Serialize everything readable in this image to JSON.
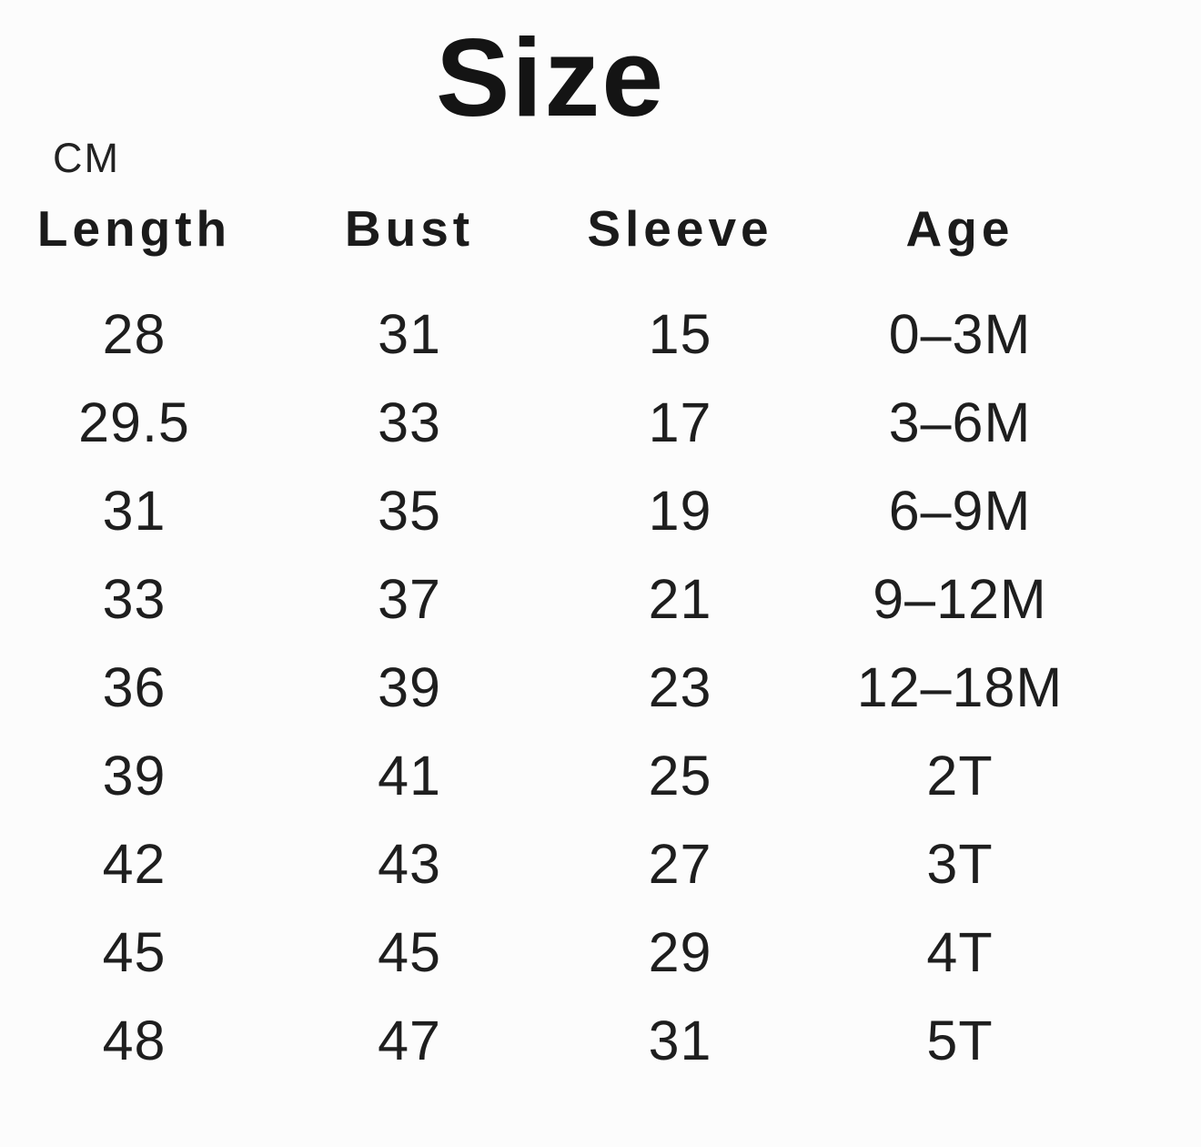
{
  "chart_data": {
    "type": "table",
    "title": "Size",
    "unit": "CM",
    "columns": [
      "Length",
      "Bust",
      "Sleeve",
      "Age"
    ],
    "rows": [
      [
        "28",
        "31",
        "15",
        "0–3M"
      ],
      [
        "29.5",
        "33",
        "17",
        "3–6M"
      ],
      [
        "31",
        "35",
        "19",
        "6–9M"
      ],
      [
        "33",
        "37",
        "21",
        "9–12M"
      ],
      [
        "36",
        "39",
        "23",
        "12–18M"
      ],
      [
        "39",
        "41",
        "25",
        "2T"
      ],
      [
        "42",
        "43",
        "27",
        "3T"
      ],
      [
        "45",
        "45",
        "29",
        "4T"
      ],
      [
        "48",
        "47",
        "31",
        "5T"
      ]
    ]
  },
  "colors": {
    "text": "#1b1b1b",
    "background": "#fcfcfc"
  }
}
